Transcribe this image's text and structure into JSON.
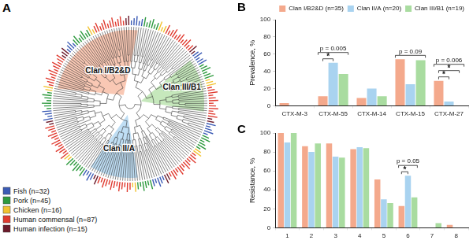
{
  "diagram": {
    "title": "A",
    "type": "tree",
    "clades": [
      {
        "label": "Clan I/B2&D",
        "color": "#f7b59b"
      },
      {
        "label": "Clan II/A",
        "color": "#a9d3f0"
      },
      {
        "label": "Clan III/B1",
        "color": "#b3e0a6"
      }
    ],
    "legend": [
      {
        "label": "Fish (n=32)",
        "n": 32,
        "color": "#3b5bb5"
      },
      {
        "label": "Pork (n=45)",
        "n": 45,
        "color": "#2e9a3e"
      },
      {
        "label": "Chicken (n=16)",
        "n": 16,
        "color": "#f2c230"
      },
      {
        "label": "Human commensal (n=87)",
        "n": 87,
        "color": "#e03a2f"
      },
      {
        "label": "Human infection (n=15)",
        "n": 15,
        "color": "#6b1a2a"
      }
    ]
  },
  "chart_data": [
    {
      "type": "bar",
      "title": "B",
      "categories": [
        "CTX-M-3",
        "CTX-M-55",
        "CTX-M-14",
        "CTX-M-15",
        "CTX-M-27"
      ],
      "series": [
        {
          "name": "Clan I/B2&D (n=35)",
          "color": "#f4a98c",
          "values": [
            3,
            11,
            9,
            54,
            29
          ]
        },
        {
          "name": "Clan II/A (n=20)",
          "color": "#a9d3f0",
          "values": [
            0,
            50,
            20,
            25,
            5
          ]
        },
        {
          "name": "Clan III/B1 (n=19)",
          "color": "#a9dca0",
          "values": [
            0,
            37,
            11,
            53,
            0
          ]
        }
      ],
      "ylabel": "Prevalence, %",
      "ylim": [
        0,
        100
      ],
      "yticks": [
        0,
        20,
        40,
        60,
        80,
        100
      ],
      "grid": false,
      "legend": "top",
      "annotations": [
        {
          "category": "CTX-M-55",
          "text": "p = 0.005",
          "pairs": [
            {
              "between": [
                "Clan I/B2&D (n=35)",
                "Clan II/A (n=20)"
              ],
              "text": "*"
            }
          ]
        },
        {
          "category": "CTX-M-15",
          "text": "p = 0.09"
        },
        {
          "category": "CTX-M-27",
          "text": "p = 0.006",
          "pairs": [
            {
              "between": [
                "Clan I/B2&D (n=35)",
                "Clan II/A (n=20)"
              ],
              "text": "*"
            },
            {
              "between": [
                "Clan I/B2&D (n=35)",
                "Clan III/B1 (n=19)"
              ],
              "text": "*"
            }
          ]
        }
      ]
    },
    {
      "type": "bar",
      "title": "C",
      "categories": [
        "1",
        "2",
        "3",
        "4",
        "5",
        "6",
        "7",
        "8"
      ],
      "series": [
        {
          "name": "Clan I/B2&D (n=35)",
          "color": "#f4a98c",
          "values": [
            100,
            86,
            89,
            83,
            51,
            23,
            0,
            3
          ]
        },
        {
          "name": "Clan II/A (n=20)",
          "color": "#a9d3f0",
          "values": [
            90,
            80,
            75,
            85,
            30,
            55,
            0,
            0
          ]
        },
        {
          "name": "Clan III/B1 (n=19)",
          "color": "#a9dca0",
          "values": [
            100,
            89,
            74,
            84,
            26,
            32,
            5,
            0
          ]
        }
      ],
      "ylabel": "Resistance, %",
      "ylim": [
        0,
        100
      ],
      "yticks": [
        0,
        20,
        40,
        60,
        80,
        100
      ],
      "grid": false,
      "annotations": [
        {
          "category": "6",
          "text": "p = 0.05",
          "pairs": [
            {
              "between": [
                "Clan I/B2&D (n=35)",
                "Clan II/A (n=20)"
              ],
              "text": "*"
            }
          ]
        }
      ]
    }
  ]
}
